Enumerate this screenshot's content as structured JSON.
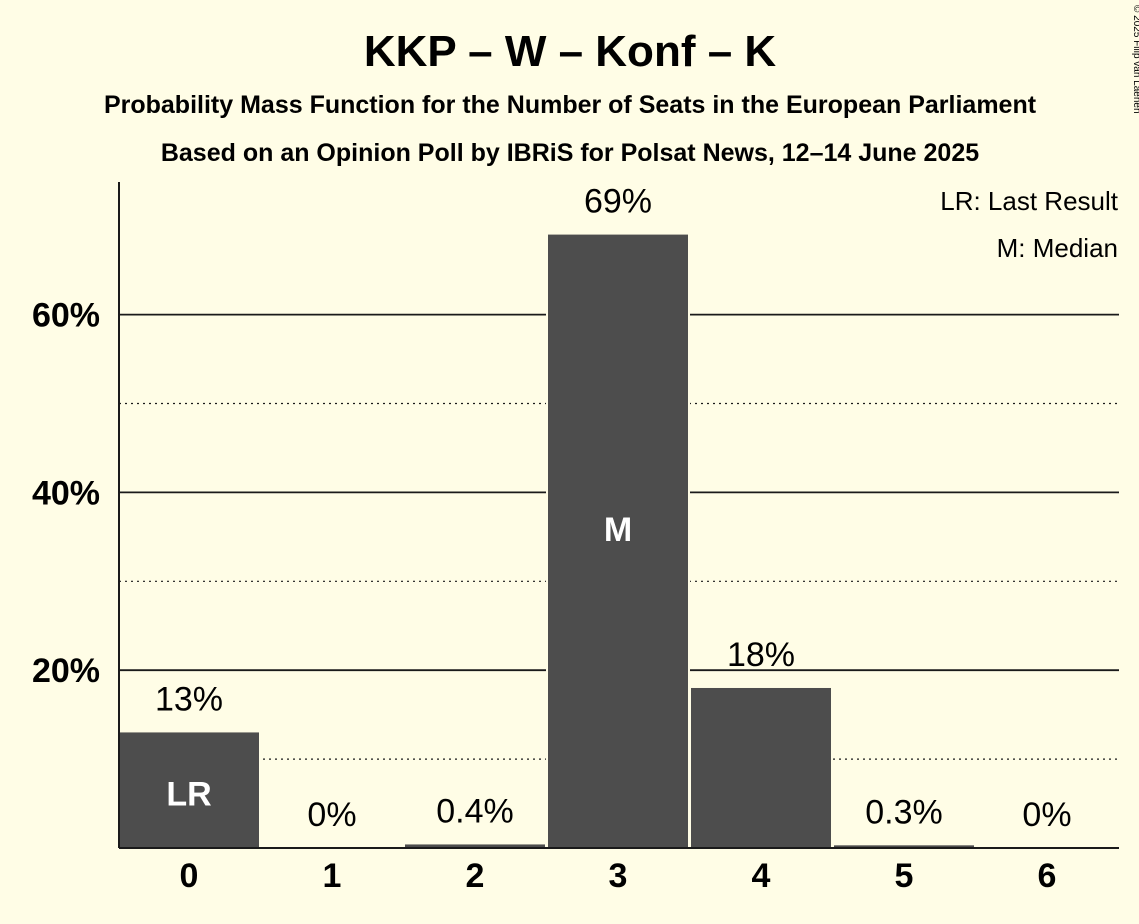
{
  "chart_data": {
    "type": "bar",
    "title": "KKP – W – Konf – K",
    "subtitle_1": "Probability Mass Function for the Number of Seats in the European Parliament",
    "subtitle_2": "Based on an Opinion Poll by IBRiS for Polsat News, 12–14 June 2025",
    "categories": [
      "0",
      "1",
      "2",
      "3",
      "4",
      "5",
      "6"
    ],
    "values": [
      13,
      0,
      0.4,
      69,
      18,
      0.3,
      0
    ],
    "data_labels": [
      "13%",
      "0%",
      "0.4%",
      "69%",
      "18%",
      "0.3%",
      "0%"
    ],
    "bar_markers": {
      "0": "LR",
      "3": "M"
    },
    "yticks": [
      {
        "value": 20,
        "label": "20%"
      },
      {
        "value": 40,
        "label": "40%"
      },
      {
        "value": 60,
        "label": "60%"
      }
    ],
    "minor_gridlines": [
      10,
      30,
      50
    ],
    "ylim": [
      0,
      75
    ],
    "legend": [
      "LR: Last Result",
      "M: Median"
    ],
    "legend_position": "top-right",
    "copyright": "© 2025 Filip van Laenen",
    "colors": {
      "background": "#fffde6",
      "bar": "#4d4d4d",
      "text": "#1a1a1a",
      "marker_text": "#ffffff"
    }
  }
}
